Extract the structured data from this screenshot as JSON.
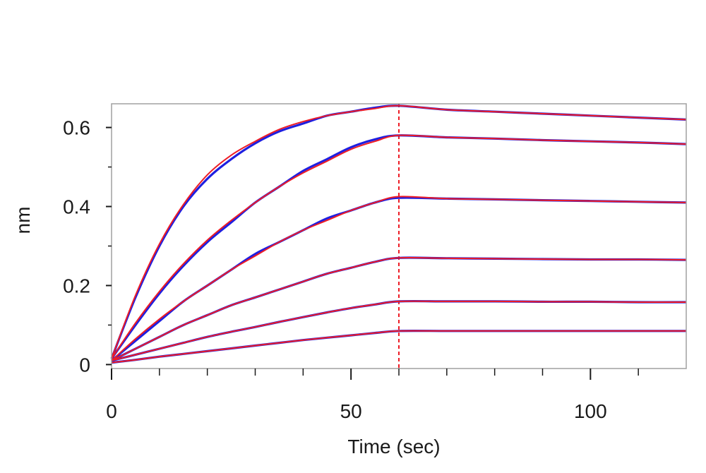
{
  "chart_data": {
    "type": "line",
    "xlabel": "Time (sec)",
    "ylabel": "nm",
    "xlim": [
      0,
      120
    ],
    "ylim": [
      -0.01,
      0.66
    ],
    "x_ticks_major": [
      0,
      50,
      100
    ],
    "x_tick_labels": [
      "0",
      "50",
      "100"
    ],
    "x_ticks_minor": [
      10,
      20,
      30,
      40,
      60,
      70,
      80,
      90,
      110
    ],
    "y_ticks_major": [
      0,
      0.2,
      0.4,
      0.6
    ],
    "y_tick_labels": [
      "0",
      "0.2",
      "0.4",
      "0.6"
    ],
    "y_ticks_minor": [
      0.1,
      0.3,
      0.5
    ],
    "grid": false,
    "legend": "none",
    "dissociation_start": 60,
    "colors": {
      "measured": "#1f1fe0",
      "fit": "#ee1c25",
      "dissociation_marker": "#ee1c25",
      "axes": "#a0a0a0",
      "text": "#1a1a1a"
    },
    "x": [
      0,
      5,
      10,
      15,
      20,
      25,
      30,
      35,
      40,
      45,
      50,
      55,
      60,
      70,
      80,
      90,
      100,
      110,
      120
    ],
    "series": [
      {
        "measured": [
          0.015,
          0.17,
          0.3,
          0.4,
          0.47,
          0.52,
          0.56,
          0.59,
          0.61,
          0.63,
          0.64,
          0.65,
          0.655,
          0.645,
          0.64,
          0.635,
          0.63,
          0.625,
          0.62
        ],
        "fit": [
          0.015,
          0.175,
          0.305,
          0.405,
          0.48,
          0.53,
          0.565,
          0.595,
          0.615,
          0.63,
          0.64,
          0.648,
          0.655,
          0.645,
          0.64,
          0.635,
          0.63,
          0.625,
          0.62
        ]
      },
      {
        "measured": [
          0.015,
          0.1,
          0.18,
          0.25,
          0.31,
          0.36,
          0.41,
          0.45,
          0.49,
          0.52,
          0.55,
          0.57,
          0.58,
          0.575,
          0.572,
          0.568,
          0.565,
          0.562,
          0.558
        ],
        "fit": [
          0.015,
          0.105,
          0.185,
          0.255,
          0.315,
          0.365,
          0.41,
          0.45,
          0.485,
          0.515,
          0.545,
          0.565,
          0.58,
          0.575,
          0.572,
          0.568,
          0.565,
          0.562,
          0.558
        ]
      },
      {
        "measured": [
          0.01,
          0.06,
          0.11,
          0.16,
          0.2,
          0.24,
          0.28,
          0.31,
          0.34,
          0.37,
          0.39,
          0.41,
          0.422,
          0.42,
          0.418,
          0.416,
          0.414,
          0.412,
          0.41
        ],
        "fit": [
          0.01,
          0.065,
          0.115,
          0.16,
          0.2,
          0.24,
          0.275,
          0.31,
          0.34,
          0.365,
          0.39,
          0.41,
          0.425,
          0.42,
          0.418,
          0.416,
          0.414,
          0.412,
          0.41
        ]
      },
      {
        "measured": [
          0.01,
          0.04,
          0.07,
          0.1,
          0.125,
          0.15,
          0.17,
          0.19,
          0.21,
          0.23,
          0.245,
          0.26,
          0.27,
          0.269,
          0.268,
          0.267,
          0.266,
          0.266,
          0.265
        ],
        "fit": [
          0.01,
          0.04,
          0.07,
          0.1,
          0.125,
          0.15,
          0.17,
          0.19,
          0.21,
          0.23,
          0.245,
          0.26,
          0.27,
          0.269,
          0.268,
          0.267,
          0.266,
          0.266,
          0.265
        ]
      },
      {
        "measured": [
          0.01,
          0.025,
          0.04,
          0.055,
          0.07,
          0.083,
          0.095,
          0.108,
          0.12,
          0.132,
          0.143,
          0.152,
          0.16,
          0.16,
          0.16,
          0.159,
          0.159,
          0.158,
          0.158
        ],
        "fit": [
          0.01,
          0.025,
          0.04,
          0.055,
          0.07,
          0.083,
          0.095,
          0.108,
          0.12,
          0.132,
          0.143,
          0.152,
          0.16,
          0.16,
          0.16,
          0.159,
          0.159,
          0.158,
          0.158
        ]
      },
      {
        "measured": [
          0.005,
          0.012,
          0.02,
          0.027,
          0.034,
          0.041,
          0.048,
          0.055,
          0.062,
          0.068,
          0.074,
          0.08,
          0.085,
          0.085,
          0.085,
          0.085,
          0.085,
          0.085,
          0.085
        ],
        "fit": [
          0.005,
          0.012,
          0.02,
          0.027,
          0.034,
          0.041,
          0.048,
          0.055,
          0.062,
          0.068,
          0.074,
          0.08,
          0.085,
          0.085,
          0.085,
          0.085,
          0.085,
          0.085,
          0.085
        ]
      }
    ]
  }
}
